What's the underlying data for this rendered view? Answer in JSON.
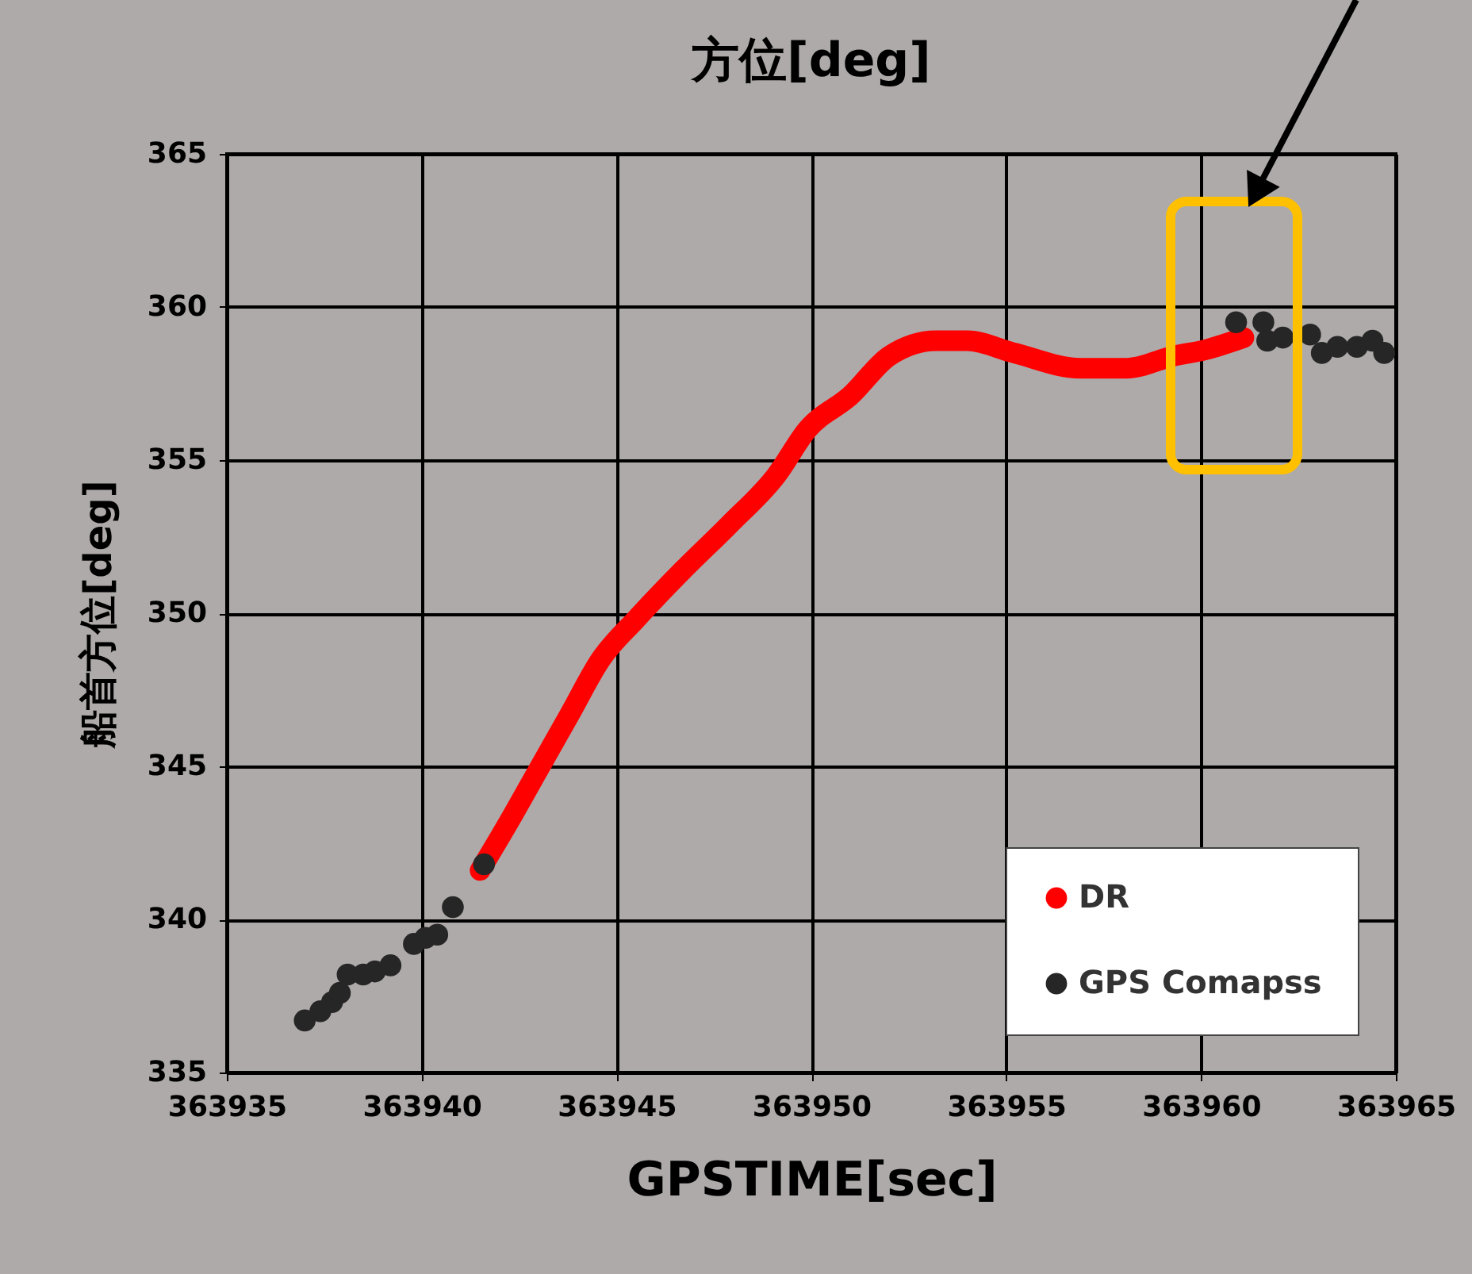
{
  "chart_data": {
    "type": "line",
    "title": "方位[deg]",
    "xlabel": "GPSTIME[sec]",
    "ylabel": "船首方位[deg]",
    "xlim": [
      363935,
      363965
    ],
    "xticks": [
      363935,
      363940,
      363945,
      363950,
      363955,
      363960,
      363965
    ],
    "ylim": [
      335,
      365
    ],
    "yticks": [
      335,
      340,
      345,
      350,
      355,
      360,
      365
    ],
    "grid": true,
    "legend": "bottom right",
    "series": [
      {
        "name": "DR",
        "marker": "circle",
        "color": "#ff0000",
        "x": [
          363941.5,
          363942.2,
          363943.0,
          363943.8,
          363944.6,
          363945.5,
          363946.7,
          363947.9,
          363949.1,
          363949.9,
          363951.0,
          363952.0,
          363953.2,
          363954.0,
          363955.2,
          363956.9,
          363958.1,
          363959.3,
          363960.1,
          363961.1
        ],
        "values": [
          341.6,
          343.1,
          344.9,
          346.7,
          348.5,
          349.8,
          351.4,
          352.9,
          354.5,
          356.0,
          357.1,
          358.4,
          358.9,
          358.9,
          358.5,
          358.0,
          358.0,
          358.4,
          358.6,
          359.0
        ]
      },
      {
        "name": "GPS Comapss",
        "type": "scatter",
        "marker": "circle",
        "color": "#262626",
        "x": [
          363937.0,
          363937.4,
          363937.7,
          363937.9,
          363938.1,
          363938.5,
          363938.8,
          363939.2,
          363939.8,
          363940.1,
          363940.4,
          363940.8,
          363941.6,
          363960.9,
          363961.6,
          363961.7,
          363962.1,
          363962.8,
          363963.1,
          363963.5,
          363964.0,
          363964.4,
          363964.7
        ],
        "values": [
          336.7,
          337.0,
          337.3,
          337.6,
          338.2,
          338.2,
          338.3,
          338.5,
          339.2,
          339.4,
          339.5,
          340.4,
          341.8,
          359.5,
          359.5,
          358.9,
          359.0,
          359.1,
          358.5,
          358.7,
          358.7,
          358.9,
          358.5
        ]
      }
    ]
  }
}
